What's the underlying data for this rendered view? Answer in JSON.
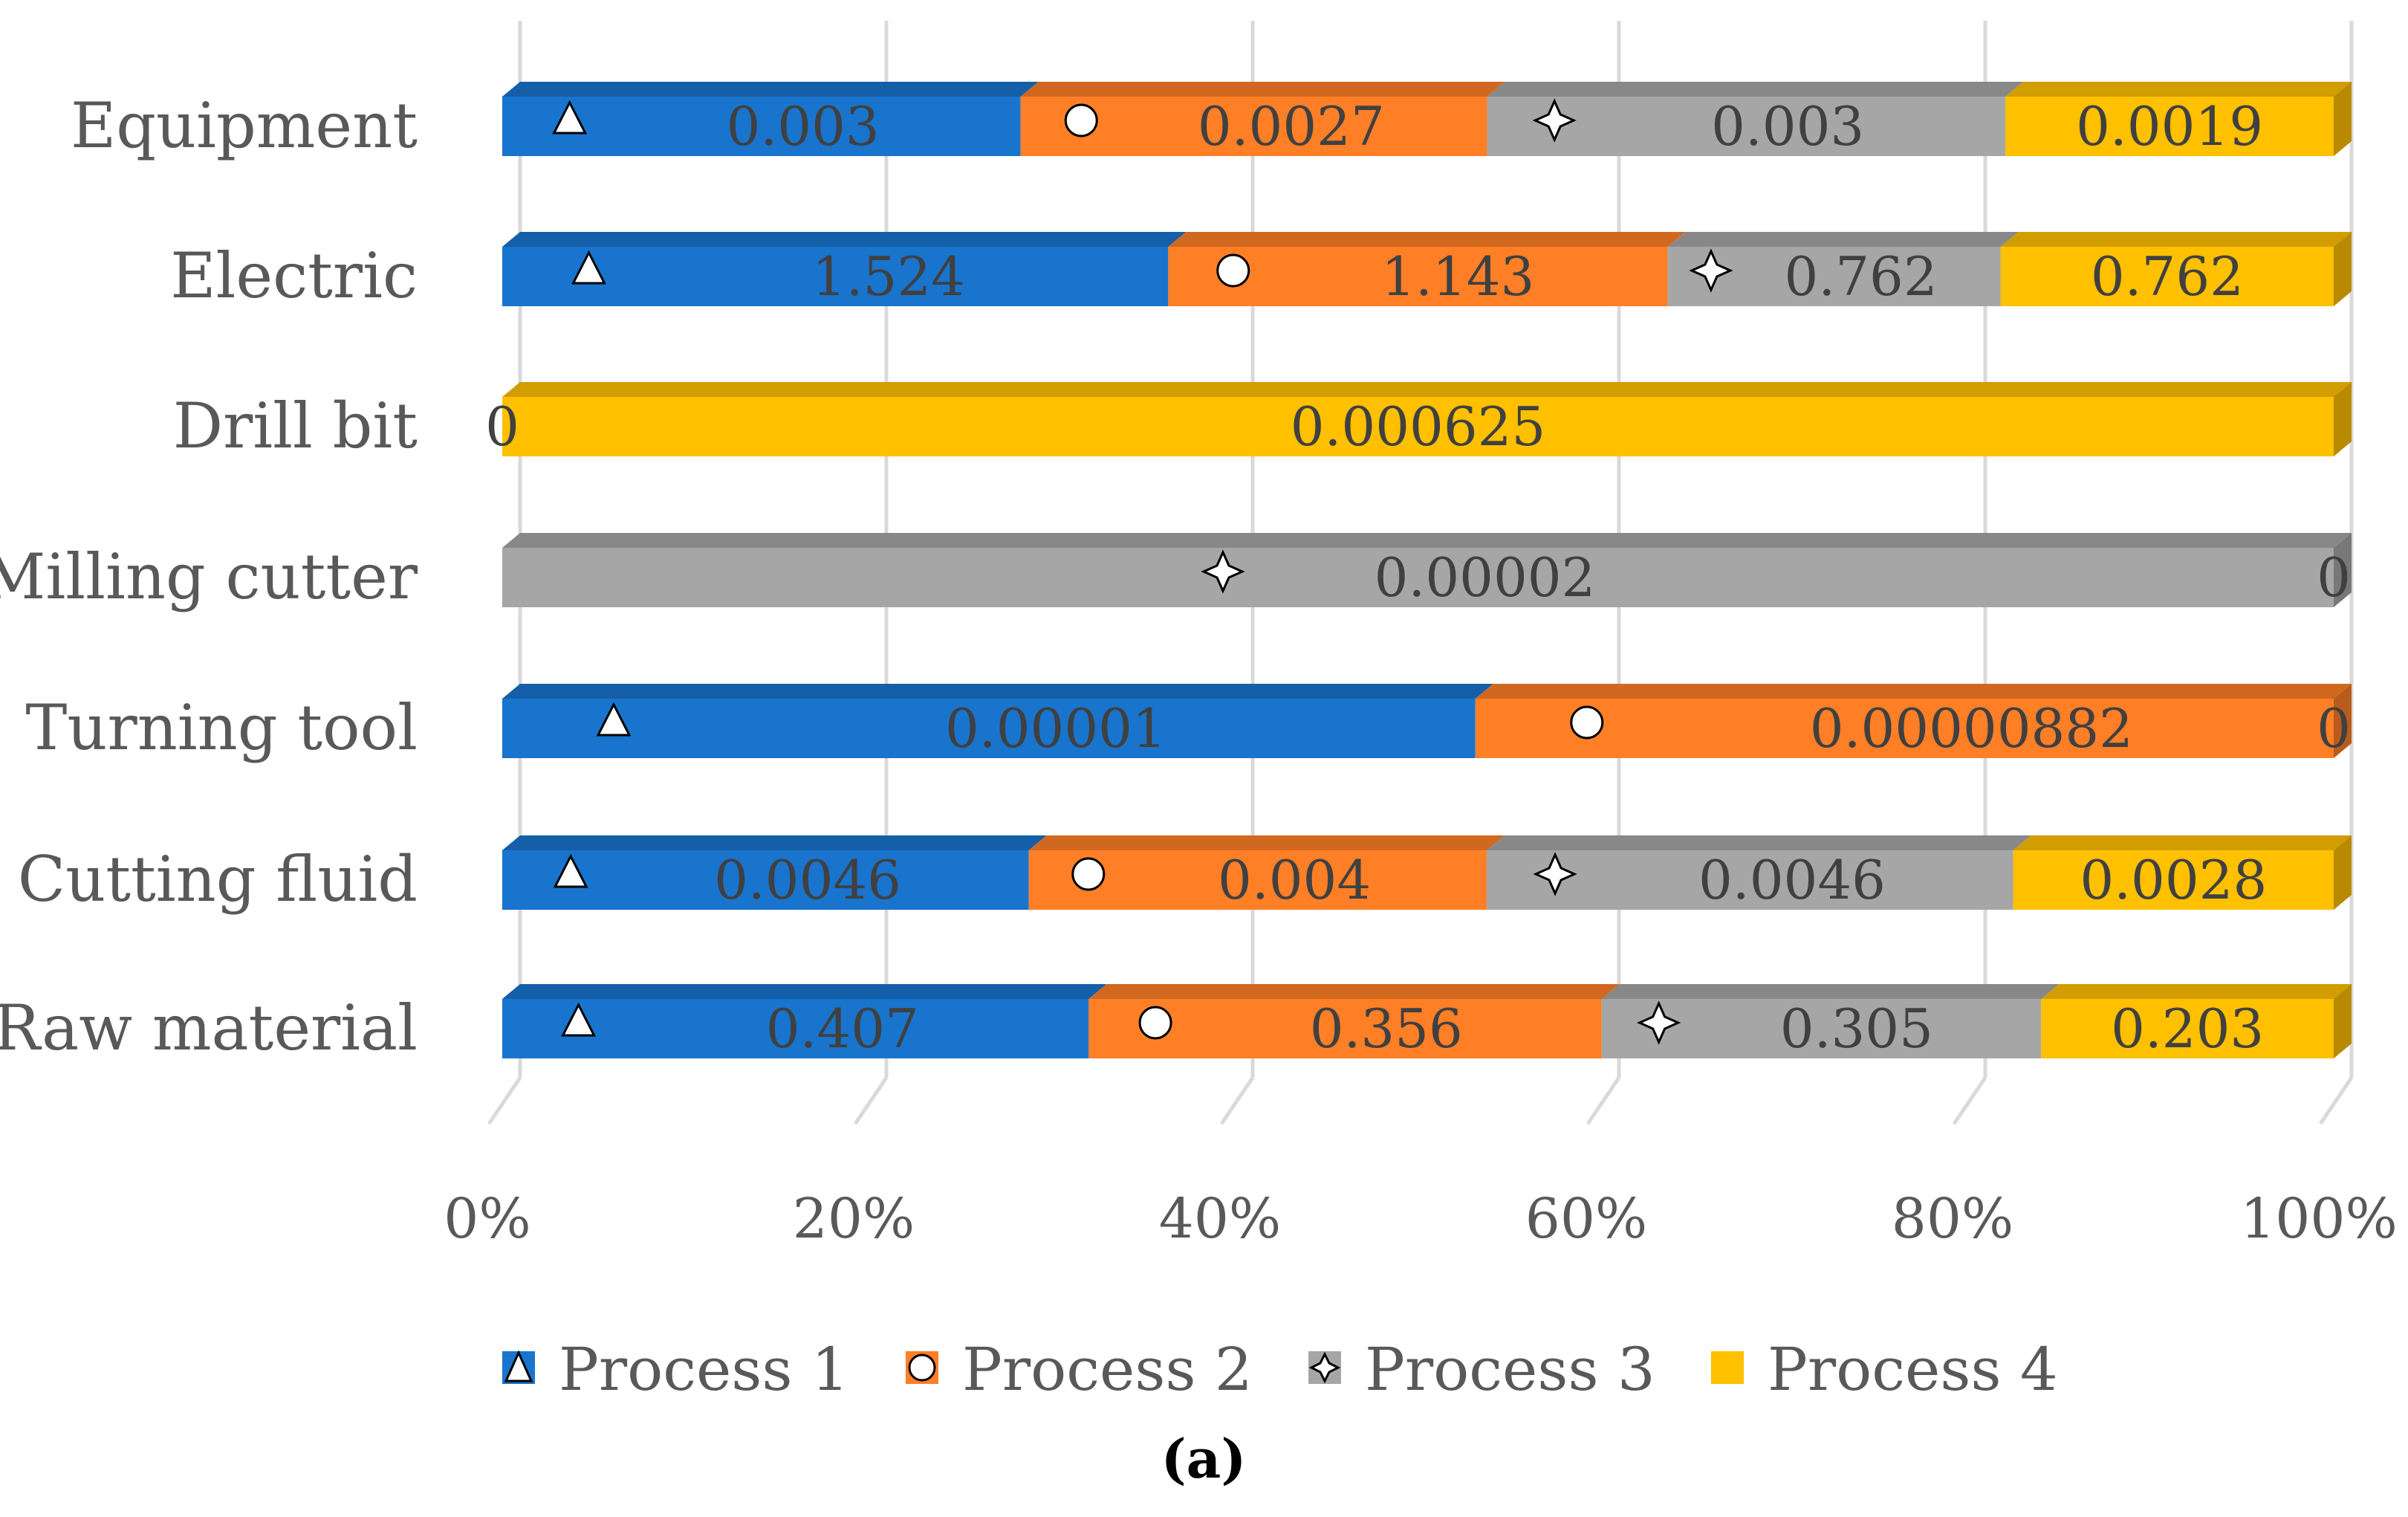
{
  "chart_data": {
    "type": "bar",
    "subtype": "stacked-100-horizontal",
    "categories": [
      "Equipment",
      "Electric",
      "Drill bit",
      "Milling cutter",
      "Turning tool",
      "Cutting fluid",
      "Raw material"
    ],
    "series": [
      {
        "name": "Process 1",
        "marker": "triangle",
        "color": "#1874CD",
        "values": [
          0.003,
          1.524,
          0,
          null,
          1e-05,
          0.0046,
          0.407
        ],
        "labels": [
          "0.003",
          "1.524",
          "0",
          "",
          "0.00001",
          "0.0046",
          "0.407"
        ]
      },
      {
        "name": "Process 2",
        "marker": "circle",
        "color": "#FF7F27",
        "values": [
          0.0027,
          1.143,
          null,
          null,
          8.82e-06,
          0.004,
          0.356
        ],
        "labels": [
          "0.0027",
          "1.143",
          "",
          "",
          "0.00000882",
          "0.004",
          "0.356"
        ]
      },
      {
        "name": "Process 3",
        "marker": "star",
        "color": "#A6A6A6",
        "values": [
          0.003,
          0.762,
          null,
          2e-05,
          0,
          0.0046,
          0.305
        ],
        "labels": [
          "0.003",
          "0.762",
          "",
          "0.00002",
          "0",
          "0.0046",
          "0.305"
        ]
      },
      {
        "name": "Process 4",
        "marker": "none",
        "color": "#FFC000",
        "values": [
          0.0019,
          0.762,
          0.000625,
          0,
          null,
          0.0028,
          0.203
        ],
        "labels": [
          "0.0019",
          "0.762",
          "0.000625",
          "0",
          "",
          "0.0028",
          "0.203"
        ]
      }
    ],
    "x_ticks": [
      "0%",
      "20%",
      "40%",
      "60%",
      "80%",
      "100%"
    ],
    "xlim": [
      0,
      100
    ],
    "legend_position": "bottom",
    "grid": true,
    "caption": "(a)"
  }
}
